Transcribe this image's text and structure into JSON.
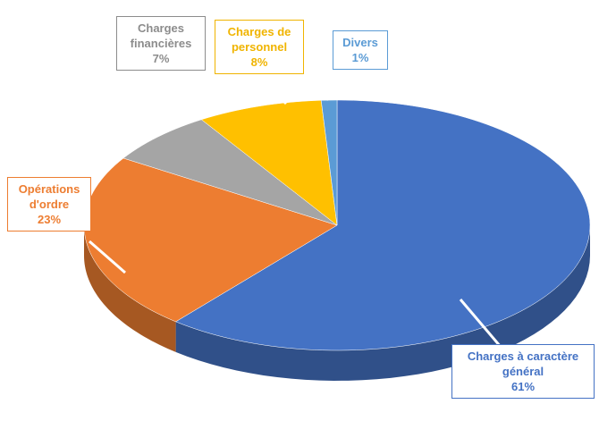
{
  "chart_data": {
    "type": "pie",
    "categories": [
      "Charges à caractère général",
      "Opérations d'ordre",
      "Charges financières",
      "Charges de personnel",
      "Divers"
    ],
    "values": [
      61,
      23,
      7,
      8,
      1
    ],
    "value_labels": [
      "61%",
      "23%",
      "7%",
      "8%",
      "1%"
    ],
    "colors": [
      "#4472c4",
      "#ed7d31",
      "#a5a5a5",
      "#ffc000",
      "#5b9bd5"
    ],
    "label_colors": [
      "#4472c4",
      "#ed7d31",
      "#8c8c8c",
      "#f0b400",
      "#5b9bd5"
    ]
  }
}
